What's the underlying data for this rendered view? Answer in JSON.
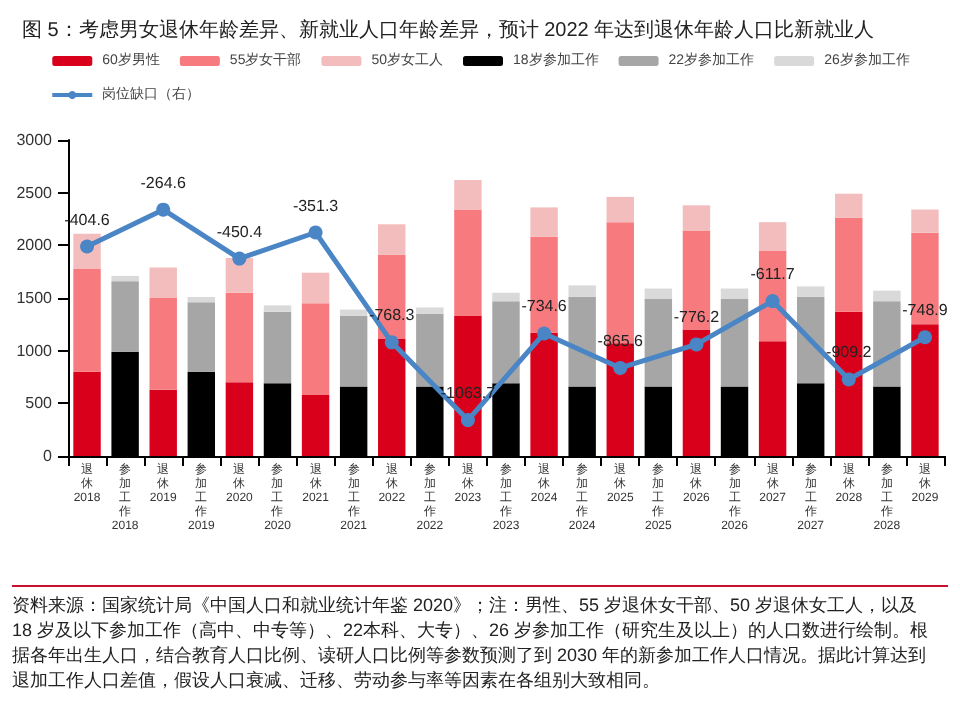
{
  "chart_data": {
    "type": "bar",
    "stacked": true,
    "title": "图 5：考虑男女退休年龄差异、新就业人口年龄差异，预计 2022 年达到退休年龄人口比新就业人",
    "categories": [
      "退休\n2018",
      "参加工作\n2018",
      "退休\n2019",
      "参加工作\n2019",
      "退休\n2020",
      "参加工作\n2020",
      "退休\n2021",
      "参加工作\n2021",
      "退休\n2022",
      "参加工作\n2022",
      "退休\n2023",
      "参加工作\n2023",
      "退休\n2024",
      "参加工作\n2024",
      "退休\n2025",
      "参加工作\n2025",
      "退休\n2026",
      "参加工作\n2026",
      "退休\n2027",
      "参加工作\n2027",
      "退休\n2028",
      "参加工作\n2028",
      "退休\n2029"
    ],
    "series": [
      {
        "name": "60岁男性",
        "color": "#d9001b",
        "values": [
          800,
          null,
          630,
          null,
          700,
          null,
          580,
          null,
          1110,
          null,
          1330,
          null,
          1170,
          null,
          1070,
          null,
          1200,
          null,
          1090,
          null,
          1370,
          null,
          1250
        ]
      },
      {
        "name": "55岁女干部",
        "color": "#f77a7e",
        "values": [
          980,
          null,
          870,
          null,
          850,
          null,
          870,
          null,
          800,
          null,
          1010,
          null,
          910,
          null,
          1150,
          null,
          940,
          null,
          860,
          null,
          890,
          null,
          870
        ]
      },
      {
        "name": "50岁女工人",
        "color": "#f4bdbd",
        "values": [
          330,
          null,
          290,
          null,
          330,
          null,
          290,
          null,
          290,
          null,
          280,
          null,
          280,
          null,
          240,
          null,
          240,
          null,
          270,
          null,
          230,
          null,
          220
        ]
      },
      {
        "name": "18岁参加工作",
        "color": "#000000",
        "values": [
          null,
          990,
          null,
          800,
          null,
          690,
          null,
          660,
          null,
          660,
          null,
          690,
          null,
          660,
          null,
          660,
          null,
          660,
          null,
          690,
          null,
          660,
          null
        ]
      },
      {
        "name": "22岁参加工作",
        "color": "#a6a6a6",
        "values": [
          null,
          670,
          null,
          660,
          null,
          680,
          null,
          670,
          null,
          690,
          null,
          780,
          null,
          850,
          null,
          830,
          null,
          830,
          null,
          820,
          null,
          810,
          null
        ]
      },
      {
        "name": "26岁参加工作",
        "color": "#d9d9d9",
        "values": [
          null,
          50,
          null,
          50,
          null,
          60,
          null,
          60,
          null,
          60,
          null,
          80,
          null,
          110,
          null,
          100,
          null,
          100,
          null,
          100,
          null,
          100,
          null
        ]
      },
      {
        "name": "岗位缺口（右）",
        "type": "line",
        "axis": "y2",
        "color": "#4a86c5",
        "marker": "circle",
        "values": [
          -404.6,
          null,
          -264.6,
          null,
          -450.4,
          null,
          -351.3,
          null,
          -768.3,
          null,
          -1063.7,
          null,
          -734.6,
          null,
          -865.6,
          null,
          -776.2,
          null,
          -611.7,
          null,
          -909.2,
          null,
          -748.9
        ],
        "value_labels": [
          "-404.6",
          null,
          "-264.6",
          null,
          "-450.4",
          null,
          "-351.3",
          null,
          "-768.3",
          null,
          "-1063.7",
          null,
          "-734.6",
          null,
          "-865.6",
          null,
          "-776.2",
          null,
          "-611.7",
          null,
          "-909.2",
          null,
          "-748.9"
        ]
      }
    ],
    "ylim": [
      0,
      3000
    ],
    "yticks": [
      0,
      500,
      1000,
      1500,
      2000,
      2500,
      3000
    ],
    "y2lim": [
      -1200,
      0
    ],
    "grid": false,
    "legend": "top",
    "annotations": [
      "资料来源：国家统计局《中国人口和就业统计年鉴 2020》；注：男性、55 岁退休女干部、50 岁退休女工人，以及 18 岁及以下参加工作（高中、中专等）、22本科、大专）、26 岁参加工作（研究生及以上）的人口数进行绘制。根据各年出生人口，结合教育人口比例、读研人口比例等参数预测了到 2030 年的新参加工作人口情况。据此计算达到退加工作人口差值，假设人口衰减、迁移、劳动参与率等因素在各组别大致相同。"
    ]
  }
}
